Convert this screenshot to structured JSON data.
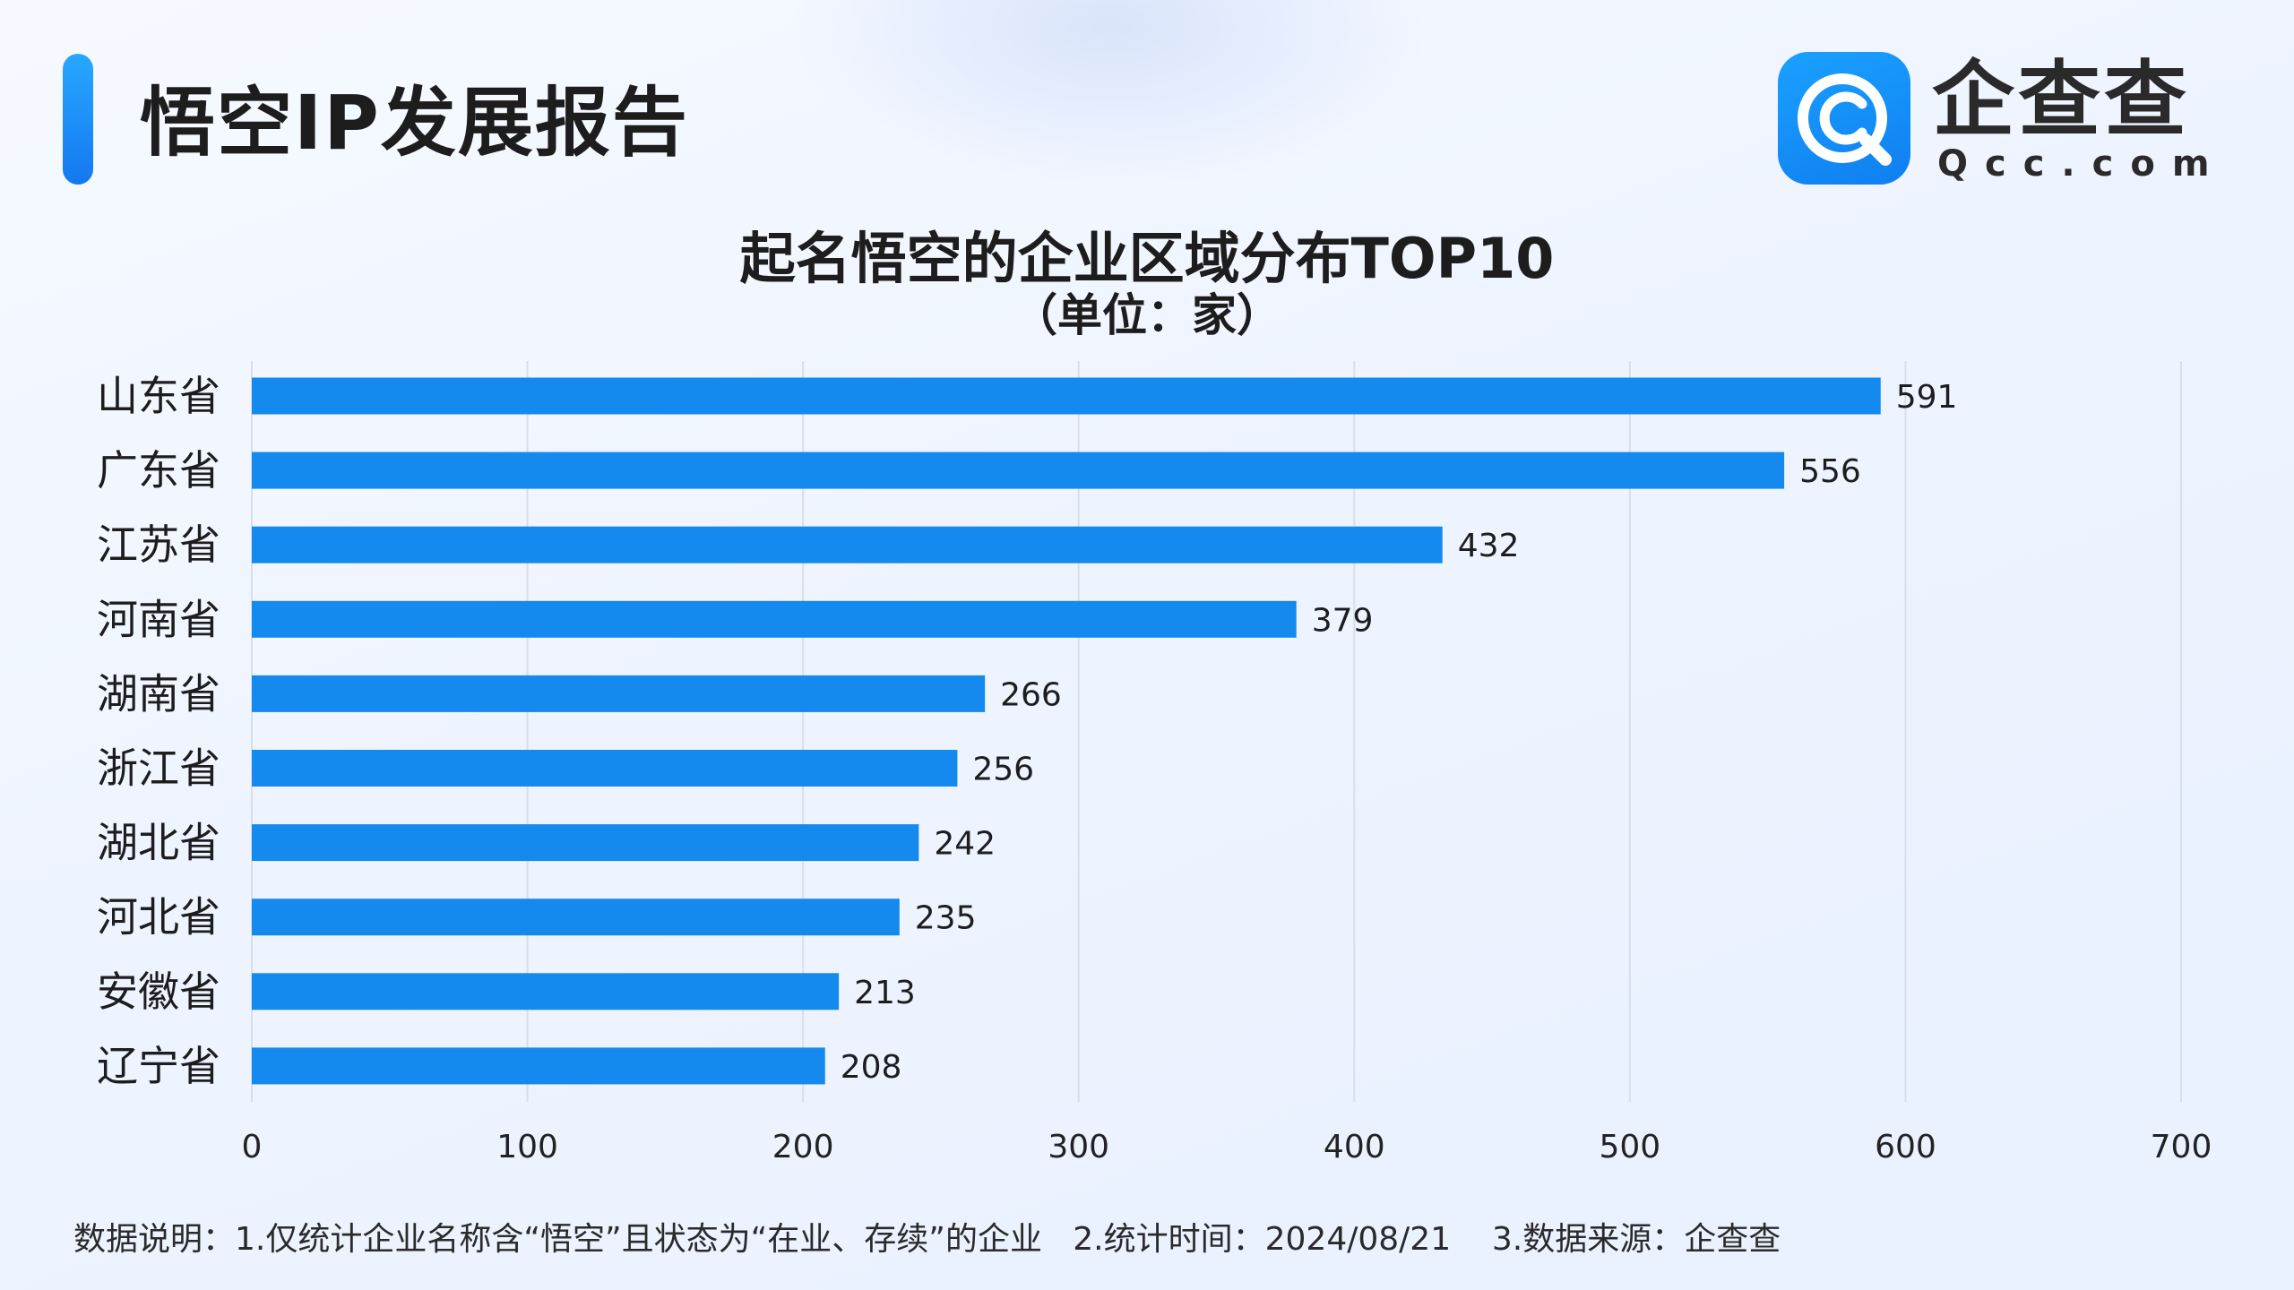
{
  "header": {
    "report_title": "悟空IP发展报告"
  },
  "logo": {
    "name_cn": "企查查",
    "name_en": "Qcc.com",
    "icon": "qcc-logo-icon",
    "brand_color": "#1489f0"
  },
  "chart_data": {
    "type": "bar",
    "orientation": "horizontal",
    "title": "起名悟空的企业区域分布TOP10",
    "subtitle": "（单位：家）",
    "categories": [
      "山东省",
      "广东省",
      "江苏省",
      "河南省",
      "湖南省",
      "浙江省",
      "湖北省",
      "河北省",
      "安徽省",
      "辽宁省"
    ],
    "values": [
      591,
      556,
      432,
      379,
      266,
      256,
      242,
      235,
      213,
      208
    ],
    "xlim": [
      0,
      700
    ],
    "xticks": [
      0,
      100,
      200,
      300,
      400,
      500,
      600,
      700
    ],
    "xlabel": "",
    "ylabel": "",
    "grid": true,
    "bar_color": "#1489ee",
    "grid_color": "#d9dfe8"
  },
  "footer": {
    "note": "数据说明：1.仅统计企业名称含“悟空”且状态为“在业、存续”的企业   2.统计时间：2024/08/21    3.数据来源：企查查"
  }
}
